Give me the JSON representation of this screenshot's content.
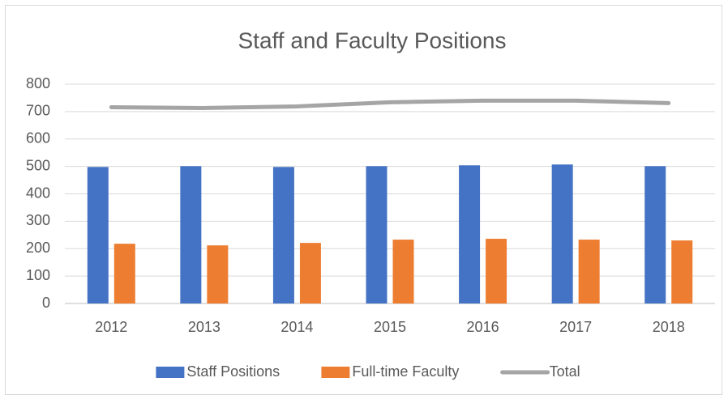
{
  "chart_data": {
    "type": "bar",
    "title": "Staff and Faculty Positions",
    "categories": [
      "2012",
      "2013",
      "2014",
      "2015",
      "2016",
      "2017",
      "2018"
    ],
    "series": [
      {
        "name": "Staff Positions",
        "color": "#4472c4",
        "type": "bar",
        "values": [
          498,
          501,
          498,
          501,
          504,
          507,
          501
        ]
      },
      {
        "name": "Full-time Faculty",
        "color": "#ed7d31",
        "type": "bar",
        "values": [
          218,
          212,
          221,
          233,
          236,
          233,
          230
        ]
      },
      {
        "name": "Total",
        "color": "#a5a5a5",
        "type": "line",
        "values": [
          716,
          713,
          719,
          734,
          740,
          740,
          731
        ]
      }
    ],
    "ylim": [
      0,
      800
    ],
    "yticks": [
      0,
      100,
      200,
      300,
      400,
      500,
      600,
      700,
      800
    ],
    "grid": true,
    "legend": "bottom"
  }
}
